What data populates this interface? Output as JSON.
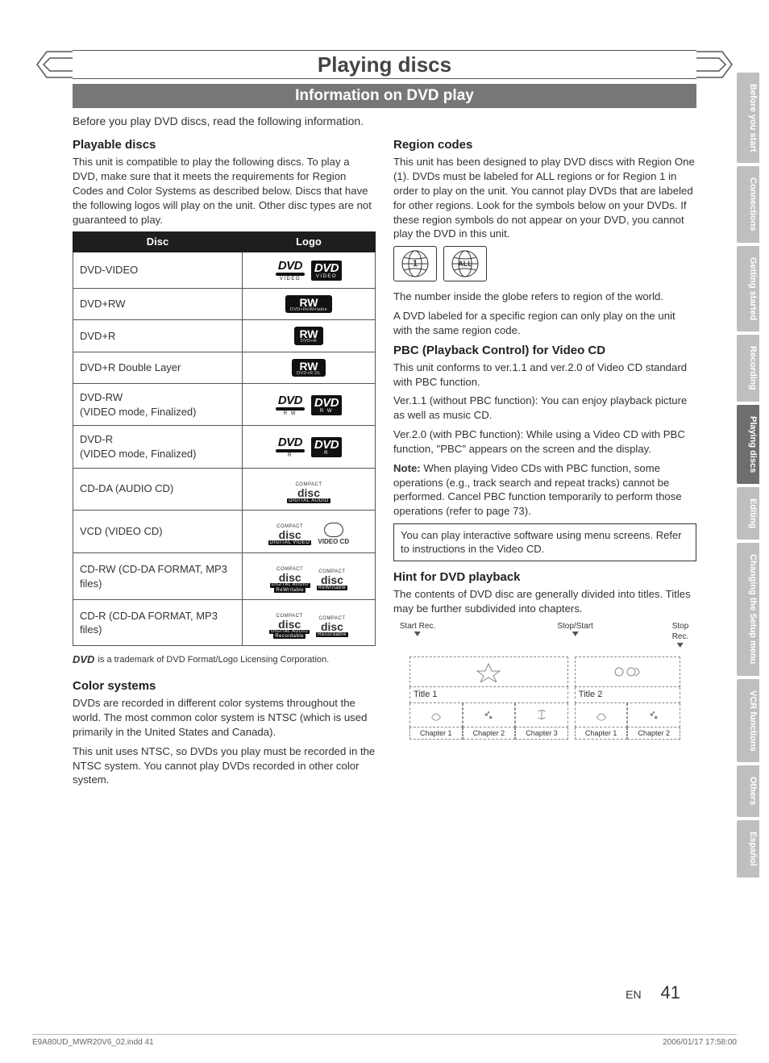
{
  "chapter_title": "Playing discs",
  "section_band": "Information on DVD play",
  "intro": "Before you play DVD discs, read the following information.",
  "left": {
    "h_playable": "Playable discs",
    "p_playable": "This unit is compatible to play the following discs. To play a DVD, make sure that it meets the requirements for Region Codes and Color Systems as described below. Discs that have the following logos will play on the unit. Other disc types are not guaranteed to play.",
    "table": {
      "head_disc": "Disc",
      "head_logo": "Logo",
      "rows": [
        {
          "name": "DVD-VIDEO",
          "logo_type": "dvd_video"
        },
        {
          "name": "DVD+RW",
          "logo_type": "rw",
          "rw_sub": "DVD+ReWritable"
        },
        {
          "name": "DVD+R",
          "logo_type": "rw",
          "rw_sub": "DVD+R"
        },
        {
          "name": "DVD+R  Double Layer",
          "logo_type": "rw",
          "rw_sub": "DVD+R DL"
        },
        {
          "name": "DVD-RW\n(VIDEO mode, Finalized)",
          "logo_type": "dvd_rw"
        },
        {
          "name": "DVD-R\n(VIDEO mode, Finalized)",
          "logo_type": "dvd_r"
        },
        {
          "name": "CD-DA (AUDIO CD)",
          "logo_type": "disc_single",
          "disc_sub": "DIGITAL AUDIO"
        },
        {
          "name": "VCD (VIDEO CD)",
          "logo_type": "vcd"
        },
        {
          "name": "CD-RW (CD-DA FORMAT, MP3 files)",
          "logo_type": "disc_double",
          "disc_sub": "ReWritable"
        },
        {
          "name": "CD-R (CD-DA FORMAT, MP3 files)",
          "logo_type": "disc_double",
          "disc_sub": "Recordable"
        }
      ]
    },
    "trademark": " is a trademark of DVD Format/Logo Licensing Corporation.",
    "h_color": "Color systems",
    "p_color1": "DVDs are recorded in different color systems throughout the world. The most common color system is NTSC (which is used primarily in the United States and Canada).",
    "p_color2": "This unit uses NTSC, so DVDs you play must be recorded in the NTSC system. You cannot play DVDs recorded in other color system."
  },
  "right": {
    "h_region": "Region codes",
    "p_region": "This unit has been designed to play DVD discs with Region One (1). DVDs must be labeled for ALL regions or for Region 1 in order to play on the unit. You cannot play DVDs that are labeled for other regions. Look for the symbols below on your DVDs. If these region symbols do not appear on your DVD, you cannot play the DVD in this unit.",
    "region_labels": {
      "one": "1",
      "all": "ALL"
    },
    "p_region2": "The number inside the globe refers to region of the world.",
    "p_region3": "A DVD labeled for a specific region can only play on the unit with the same region code.",
    "h_pbc": "PBC (Playback Control) for Video CD",
    "p_pbc1": "This unit conforms to ver.1.1 and ver.2.0 of Video CD standard with PBC function.",
    "p_pbc2": "Ver.1.1 (without PBC function): You can enjoy playback picture as well as music CD.",
    "p_pbc3": "Ver.2.0 (with PBC function): While using a Video CD with PBC function, \"PBC\" appears on the screen and the display.",
    "pbc_note_label": "Note:",
    "p_pbc_note": " When playing Video CDs with PBC function, some operations (e.g., track search and repeat tracks) cannot be performed. Cancel PBC function temporarily to perform those operations (refer to page 73).",
    "pbc_box": "You can play interactive software using menu screens. Refer to instructions in the Video CD.",
    "h_hint": "Hint for DVD playback",
    "p_hint": "The contents of DVD disc are generally divided into titles. Titles may be further subdivided into chapters.",
    "diagram": {
      "m_start": "Start Rec.",
      "m_ss": "Stop/Start",
      "m_stop": "Stop Rec.",
      "title1": "Title 1",
      "title2": "Title 2",
      "t1_chapters": [
        "Chapter 1",
        "Chapter 2",
        "Chapter 3"
      ],
      "t2_chapters": [
        "Chapter 1",
        "Chapter 2"
      ]
    }
  },
  "tabs": [
    {
      "label": "Before you start",
      "active": false
    },
    {
      "label": "Connections",
      "active": false
    },
    {
      "label": "Getting started",
      "active": false
    },
    {
      "label": "Recording",
      "active": false
    },
    {
      "label": "Playing discs",
      "active": true
    },
    {
      "label": "Editing",
      "active": false
    },
    {
      "label": "Changing the Setup menu",
      "active": false
    },
    {
      "label": "VCR functions",
      "active": false
    },
    {
      "label": "Others",
      "active": false
    },
    {
      "label": "Español",
      "active": false
    }
  ],
  "page_lang": "EN",
  "page_num": "41",
  "footer_left": "E9A80UD_MWR20V6_02.indd   41",
  "footer_right": "2006/01/17   17:58:00",
  "colors": {
    "band_bg": "#777777",
    "tab_inactive": "#bfbfbf",
    "tab_active": "#6e6e6e",
    "table_header_bg": "#1e1e1e"
  }
}
